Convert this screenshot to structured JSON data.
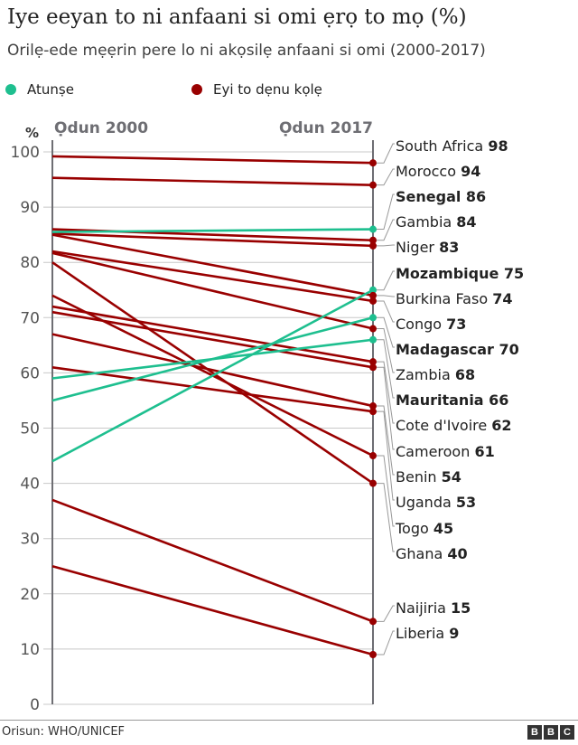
{
  "chart_data": {
    "type": "line",
    "title": "Iye eeyan to ni anfaani si omi ẹrọ to mọ (%)",
    "subtitle": "Orilẹ-ede mẹẹrin pere lo ni akọsilẹ anfaani si omi (2000-2017)",
    "ylabel": "%",
    "x": [
      "Ọdun 2000",
      "Ọdun 2017"
    ],
    "ylim": [
      0,
      100
    ],
    "yticks": [
      0,
      10,
      20,
      30,
      40,
      50,
      60,
      70,
      80,
      90,
      100
    ],
    "grid": true,
    "legend": [
      {
        "name": "Atunṣe",
        "color": "#1ebf8f"
      },
      {
        "name": "Eyi to dẹnu kọlẹ",
        "color": "#990000"
      }
    ],
    "series": [
      {
        "name": "South Africa",
        "values": [
          99.2,
          98
        ],
        "group": "declined",
        "bold": false
      },
      {
        "name": "Morocco",
        "values": [
          95.3,
          94
        ],
        "group": "declined",
        "bold": false
      },
      {
        "name": "Senegal",
        "values": [
          85.5,
          86
        ],
        "group": "improved",
        "bold": true
      },
      {
        "name": "Gambia",
        "values": [
          86,
          84
        ],
        "group": "declined",
        "bold": false
      },
      {
        "name": "Niger",
        "values": [
          85.2,
          83
        ],
        "group": "declined",
        "bold": false
      },
      {
        "name": "Mozambique",
        "values": [
          44,
          75
        ],
        "group": "improved",
        "bold": true
      },
      {
        "name": "Burkina Faso",
        "values": [
          85,
          74
        ],
        "group": "declined",
        "bold": false
      },
      {
        "name": "Congo",
        "values": [
          82,
          73
        ],
        "group": "declined",
        "bold": false
      },
      {
        "name": "Madagascar",
        "values": [
          55,
          70
        ],
        "group": "improved",
        "bold": true
      },
      {
        "name": "Zambia",
        "values": [
          81.7,
          68
        ],
        "group": "declined",
        "bold": false
      },
      {
        "name": "Mauritania",
        "values": [
          59,
          66
        ],
        "group": "improved",
        "bold": true
      },
      {
        "name": "Cote d'Ivoire",
        "values": [
          72,
          62
        ],
        "group": "declined",
        "bold": false
      },
      {
        "name": "Cameroon",
        "values": [
          71,
          61
        ],
        "group": "declined",
        "bold": false
      },
      {
        "name": "Benin",
        "values": [
          67,
          54
        ],
        "group": "declined",
        "bold": false
      },
      {
        "name": "Uganda",
        "values": [
          61,
          53
        ],
        "group": "declined",
        "bold": false
      },
      {
        "name": "Togo",
        "values": [
          74,
          45
        ],
        "group": "declined",
        "bold": false
      },
      {
        "name": "Ghana",
        "values": [
          80,
          40
        ],
        "group": "declined",
        "bold": false
      },
      {
        "name": "Naijiria",
        "values": [
          37,
          15
        ],
        "group": "declined",
        "bold": false
      },
      {
        "name": "Liberia",
        "values": [
          25,
          9
        ],
        "group": "declined",
        "bold": false
      }
    ]
  },
  "colors": {
    "improved": "#1ebf8f",
    "declined": "#990000"
  },
  "footer": {
    "source": "Orisun: WHO/UNICEF",
    "logo": [
      "B",
      "B",
      "C"
    ]
  }
}
